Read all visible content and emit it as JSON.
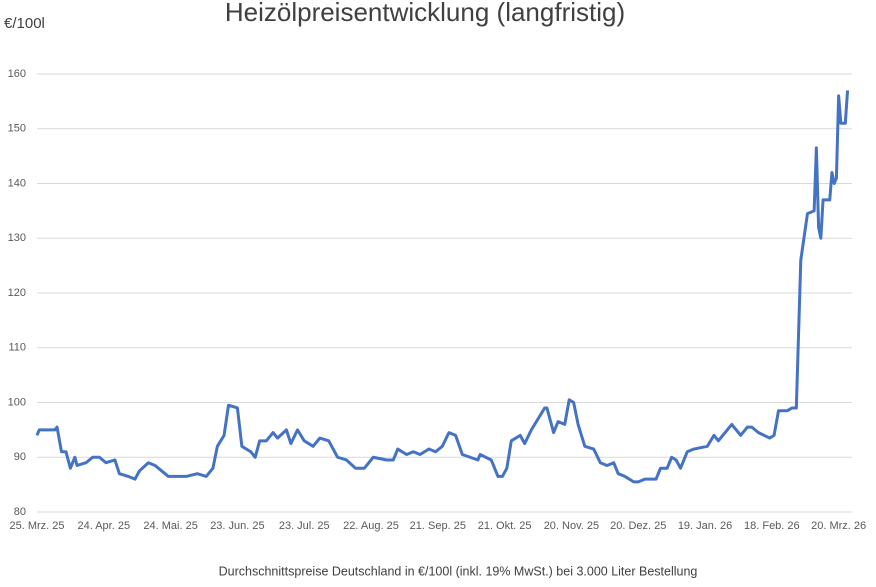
{
  "chart_data": {
    "type": "line",
    "title": "Heizölpreisentwicklung (langfristig)",
    "y_label": "€/100l",
    "x_label": "Durchschnittspreise Deutschland in €/100l (inkl. 19% MwSt.) bei 3.000 Liter Bestellung",
    "xlim": [
      "2025-03-25",
      "2026-03-26"
    ],
    "xticks": [
      {
        "value": "2025-03-25",
        "label": "25. Mrz. 25"
      },
      {
        "value": "2025-04-24",
        "label": "24. Apr. 25"
      },
      {
        "value": "2025-05-24",
        "label": "24. Mai. 25"
      },
      {
        "value": "2025-06-23",
        "label": "23. Jun. 25"
      },
      {
        "value": "2025-07-23",
        "label": "23. Jul. 25"
      },
      {
        "value": "2025-08-22",
        "label": "22. Aug. 25"
      },
      {
        "value": "2025-09-21",
        "label": "21. Sep. 25"
      },
      {
        "value": "2025-10-21",
        "label": "21. Okt. 25"
      },
      {
        "value": "2025-11-20",
        "label": "20. Nov. 25"
      },
      {
        "value": "2025-12-20",
        "label": "20. Dez. 25"
      },
      {
        "value": "2026-01-19",
        "label": "19. Jan. 26"
      },
      {
        "value": "2026-02-18",
        "label": "18. Feb. 26"
      },
      {
        "value": "2026-03-20",
        "label": "20. Mrz. 26"
      }
    ],
    "ylim": [
      80,
      160
    ],
    "yticks": [
      80,
      90,
      100,
      110,
      120,
      130,
      140,
      150,
      160
    ],
    "grid": true,
    "x": [
      "2025-03-25",
      "2025-03-26",
      "2025-04-02",
      "2025-04-03",
      "2025-04-05",
      "2025-04-07",
      "2025-04-09",
      "2025-04-11",
      "2025-04-12",
      "2025-04-16",
      "2025-04-19",
      "2025-04-22",
      "2025-04-25",
      "2025-04-29",
      "2025-05-01",
      "2025-05-05",
      "2025-05-08",
      "2025-05-10",
      "2025-05-14",
      "2025-05-17",
      "2025-05-20",
      "2025-05-23",
      "2025-05-31",
      "2025-06-05",
      "2025-06-09",
      "2025-06-12",
      "2025-06-14",
      "2025-06-17",
      "2025-06-19",
      "2025-06-23",
      "2025-06-25",
      "2025-06-29",
      "2025-07-01",
      "2025-07-03",
      "2025-07-06",
      "2025-07-09",
      "2025-07-11",
      "2025-07-15",
      "2025-07-17",
      "2025-07-20",
      "2025-07-23",
      "2025-07-27",
      "2025-07-30",
      "2025-08-03",
      "2025-08-07",
      "2025-08-11",
      "2025-08-15",
      "2025-08-19",
      "2025-08-23",
      "2025-08-29",
      "2025-09-01",
      "2025-09-03",
      "2025-09-07",
      "2025-09-10",
      "2025-09-13",
      "2025-09-17",
      "2025-09-20",
      "2025-09-23",
      "2025-09-26",
      "2025-09-29",
      "2025-10-02",
      "2025-10-09",
      "2025-10-10",
      "2025-10-15",
      "2025-10-18",
      "2025-10-20",
      "2025-10-22",
      "2025-10-24",
      "2025-10-28",
      "2025-10-30",
      "2025-11-02",
      "2025-11-08",
      "2025-11-09",
      "2025-11-12",
      "2025-11-14",
      "2025-11-17",
      "2025-11-19",
      "2025-11-21",
      "2025-11-23",
      "2025-11-26",
      "2025-11-30",
      "2025-12-03",
      "2025-12-06",
      "2025-12-09",
      "2025-12-11",
      "2025-12-14",
      "2025-12-18",
      "2025-12-20",
      "2025-12-23",
      "2025-12-28",
      "2025-12-30",
      "2026-01-02",
      "2026-01-04",
      "2026-01-06",
      "2026-01-08",
      "2026-01-11",
      "2026-01-14",
      "2026-01-20",
      "2026-01-23",
      "2026-01-25",
      "2026-01-27",
      "2026-01-31",
      "2026-02-04",
      "2026-02-07",
      "2026-02-09",
      "2026-02-12",
      "2026-02-17",
      "2026-02-19",
      "2026-02-21",
      "2026-02-25",
      "2026-02-27",
      "2026-03-01",
      "2026-03-03",
      "2026-03-06",
      "2026-03-09",
      "2026-03-10",
      "2026-03-11",
      "2026-03-12",
      "2026-03-13",
      "2026-03-16",
      "2026-03-17",
      "2026-03-18",
      "2026-03-19",
      "2026-03-20",
      "2026-03-21",
      "2026-03-23",
      "2026-03-24"
    ],
    "series": [
      {
        "color": "#4472c4",
        "values": [
          94,
          95,
          95,
          95.5,
          91,
          91,
          88,
          90,
          88.5,
          89,
          90,
          90,
          89,
          89.5,
          87,
          86.5,
          86,
          87.5,
          89,
          88.5,
          87.5,
          86.5,
          86.5,
          87,
          86.5,
          88,
          92,
          94,
          99.5,
          99,
          92,
          91,
          90,
          93,
          93,
          94.5,
          93.5,
          95,
          92.5,
          95,
          93,
          92,
          93.5,
          93,
          90,
          89.5,
          88,
          88,
          90,
          89.5,
          89.5,
          91.5,
          90.5,
          91,
          90.5,
          91.5,
          91,
          92,
          94.5,
          94,
          90.5,
          89.5,
          90.5,
          89.5,
          86.5,
          86.5,
          88,
          93,
          94,
          92.5,
          95,
          99,
          99,
          94.5,
          96.5,
          96,
          100.5,
          100,
          96,
          92,
          91.5,
          89,
          88.5,
          89,
          87,
          86.5,
          85.5,
          85.5,
          86,
          86,
          88,
          88,
          90,
          89.5,
          88,
          91,
          91.5,
          92,
          94,
          93,
          94,
          96,
          94,
          95.5,
          95.5,
          94.5,
          93.5,
          94,
          98.5,
          98.5,
          99,
          99,
          126,
          134.5,
          135,
          146.5,
          132,
          130,
          137,
          137,
          142,
          140,
          141,
          156,
          151,
          151,
          157
        ]
      }
    ]
  }
}
